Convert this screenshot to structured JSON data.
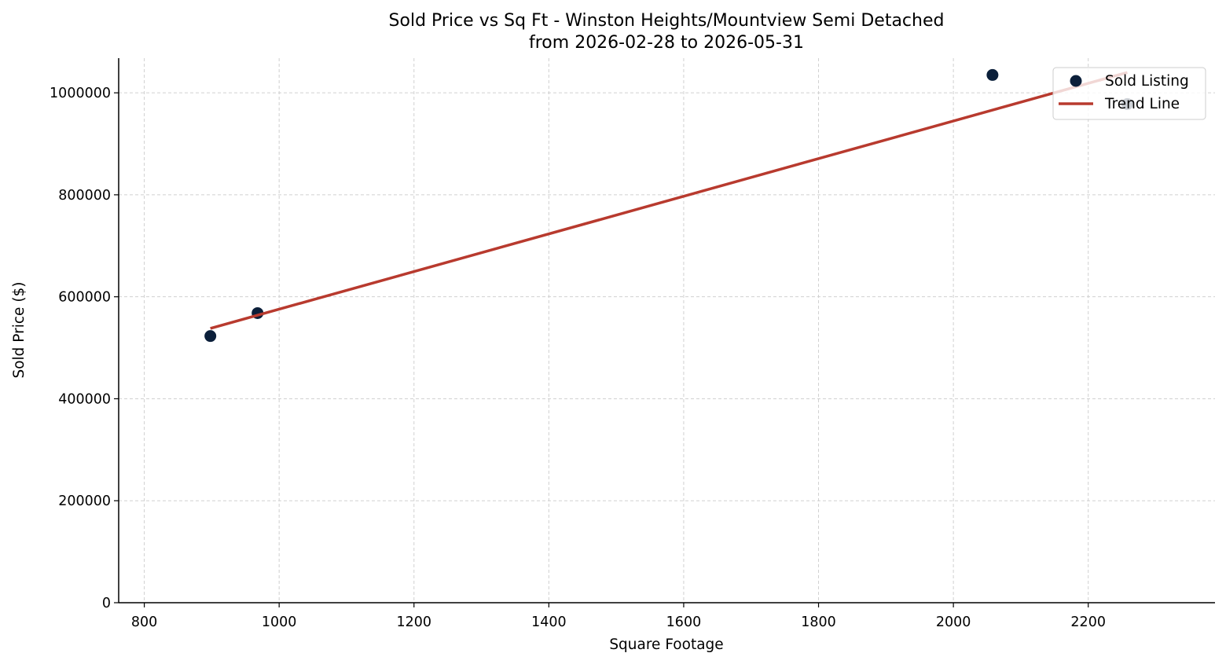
{
  "chart_data": {
    "type": "scatter",
    "title_line1": "Sold Price vs Sq Ft - Winston Heights/Mountview Semi Detached",
    "title_line2": "from 2026-02-28 to 2026-05-31",
    "xlabel": "Square Footage",
    "ylabel": "Sold Price ($)",
    "xlim": [
      762,
      2388
    ],
    "ylim": [
      0,
      1068000
    ],
    "xticks": [
      800,
      1000,
      1200,
      1400,
      1600,
      1800,
      2000,
      2200
    ],
    "yticks": [
      0,
      200000,
      400000,
      600000,
      800000,
      1000000
    ],
    "grid": true,
    "legend_position": "top-right",
    "series": [
      {
        "name": "Sold Listing",
        "kind": "scatter",
        "color": "#0b1f3a",
        "points": [
          {
            "x": 898,
            "y": 523000
          },
          {
            "x": 968,
            "y": 568000
          },
          {
            "x": 2058,
            "y": 1035000
          },
          {
            "x": 2258,
            "y": 978000
          }
        ]
      },
      {
        "name": "Trend Line",
        "kind": "line",
        "color": "#b83a2e",
        "points": [
          {
            "x": 898,
            "y": 538000
          },
          {
            "x": 2258,
            "y": 1040000
          }
        ]
      }
    ]
  }
}
